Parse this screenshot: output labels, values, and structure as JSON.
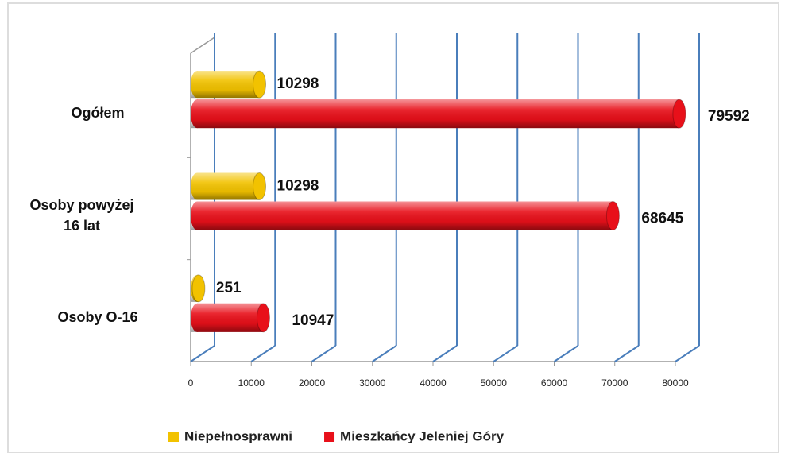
{
  "chart_data": {
    "type": "bar",
    "orientation": "horizontal",
    "style": "3d-cylinder",
    "categories": [
      "Ogółem",
      "Osoby powyżej 16 lat",
      "Osoby  O-16"
    ],
    "series": [
      {
        "name": "Niepełnosprawni",
        "color": "#f2c200",
        "values": [
          10298,
          10298,
          251
        ]
      },
      {
        "name": "Mieszkańcy Jeleniej Góry",
        "color": "#e8101a",
        "values": [
          79592,
          68645,
          10947
        ]
      }
    ],
    "xlim": [
      0,
      80000
    ],
    "xticks": [
      0,
      10000,
      20000,
      30000,
      40000,
      50000,
      60000,
      70000,
      80000
    ],
    "grid": true,
    "legend": "bottom"
  }
}
